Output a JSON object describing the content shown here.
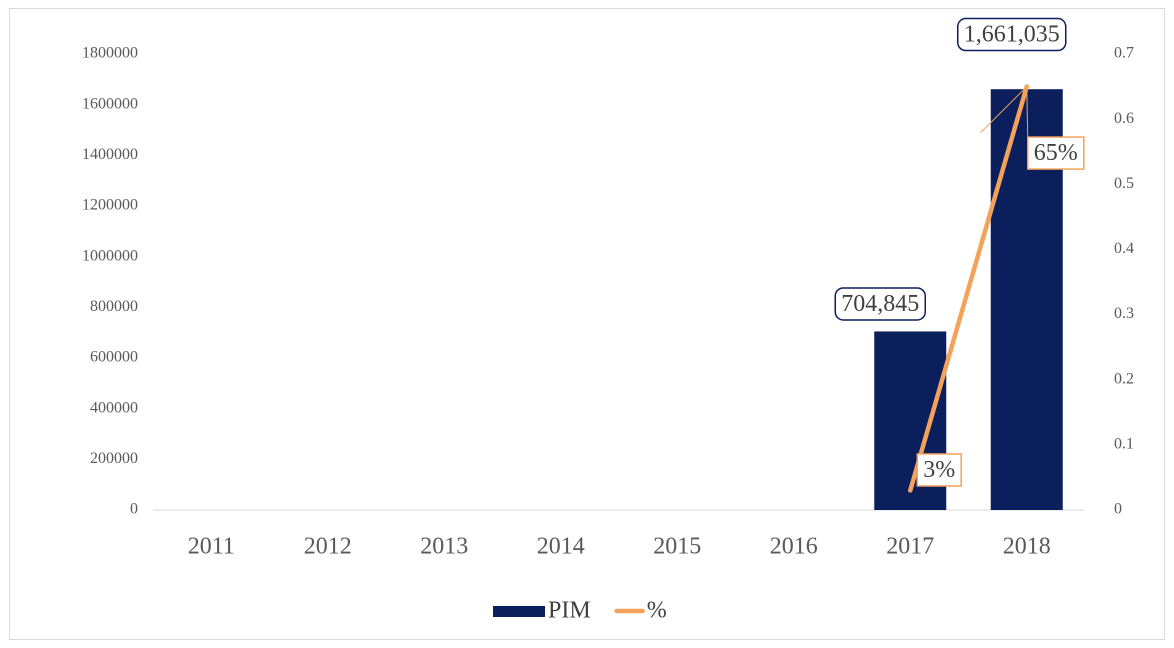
{
  "chart_data": {
    "type": "bar",
    "categories": [
      "2011",
      "2012",
      "2013",
      "2014",
      "2015",
      "2016",
      "2017",
      "2018"
    ],
    "series": [
      {
        "name": "PIM",
        "type": "bar",
        "color": "#0b1f5c",
        "values": [
          null,
          null,
          null,
          null,
          null,
          null,
          704845,
          1661035
        ],
        "value_labels": [
          null,
          null,
          null,
          null,
          null,
          null,
          "704,845",
          "1,661,035"
        ]
      },
      {
        "name": "%",
        "type": "line",
        "axis": "y2",
        "color": "#f4a25a",
        "values": [
          null,
          null,
          null,
          null,
          null,
          null,
          0.03,
          0.65
        ],
        "value_labels": [
          null,
          null,
          null,
          null,
          null,
          null,
          "3%",
          "65%"
        ]
      }
    ],
    "ylim": [
      0,
      1800000
    ],
    "yticks": [
      0,
      200000,
      400000,
      600000,
      800000,
      1000000,
      1200000,
      1400000,
      1600000,
      1800000
    ],
    "y2lim": [
      0,
      0.7
    ],
    "y2ticks": [
      0,
      0.1,
      0.2,
      0.3,
      0.4,
      0.5,
      0.6,
      0.7
    ],
    "legend": "bottom"
  }
}
